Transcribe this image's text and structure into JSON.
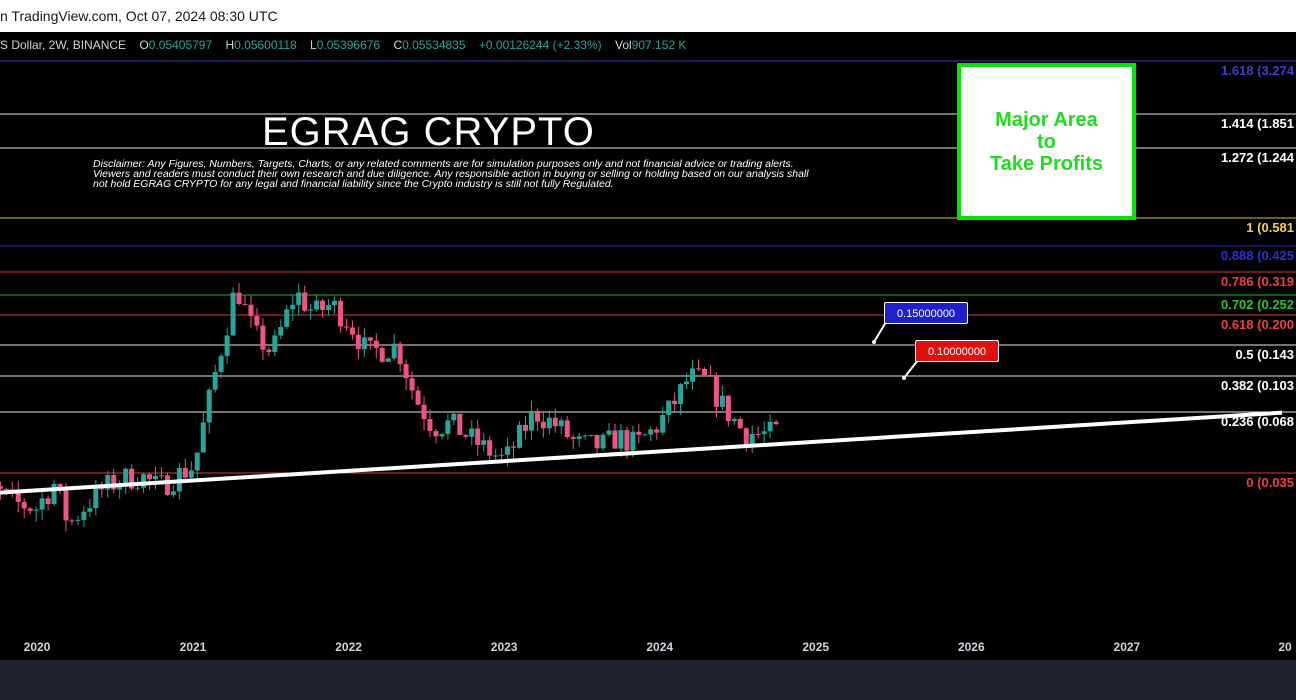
{
  "header": {
    "source_text": "n TradingView.com, Oct 07, 2024 08:30 UTC"
  },
  "legend": {
    "symbol": "S Dollar, 2W, BINANCE",
    "open_label": "O",
    "open": "0.05405797",
    "high_label": "H",
    "high": "0.05600118",
    "low_label": "L",
    "low": "0.05396676",
    "close_label": "C",
    "close": "0.05534835",
    "change": "+0.00126244 (+2.33%)",
    "vol_label": "Vol",
    "vol": "907.152 K"
  },
  "overlay": {
    "brand": "EGRAG CRYPTO",
    "disclaimer": "Disclaimer: Any Figures, Numbers, Targets, Charts, or any related comments are for simulation purposes only and not financial advice or trading alerts. Viewers and readers must conduct their own research and due diligence. Any responsible action in buying or selling or holding based on our analysis shall not hold EGRAG CRYPTO for any legal and financial liability since the Crypto industry is still not fully Regulated.",
    "take_profit_box": "Major Area\nto\nTake Profits"
  },
  "callouts": [
    {
      "text": "0.15000000",
      "color": "#1f1fcc"
    },
    {
      "text": "0.10000000",
      "color": "#e01010"
    }
  ],
  "colors": {
    "up": "#26a69a",
    "down": "#ef5383",
    "background": "#000000",
    "trendline": "#ffffff"
  },
  "chart_data": {
    "type": "candlestick",
    "interval": "2W",
    "xlabel": "",
    "ylabel": "",
    "x_ticks": [
      "2020",
      "2021",
      "2022",
      "2023",
      "2024",
      "2025",
      "2026",
      "2027",
      "20"
    ],
    "fib_levels": [
      {
        "label": "1.618 (3.274",
        "ratio": 1.618,
        "color": "#3f3fcf"
      },
      {
        "label": "1.414 (1.851",
        "ratio": 1.414,
        "color": "#ffffff"
      },
      {
        "label": "1.272 (1.244",
        "ratio": 1.272,
        "color": "#ffffff"
      },
      {
        "label": "1 (0.581",
        "ratio": 1,
        "color": "#f3d14b"
      },
      {
        "label": "0.888 (0.425",
        "ratio": 0.888,
        "color": "#3030d0"
      },
      {
        "label": "0.786 (0.319",
        "ratio": 0.786,
        "color": "#ef4040"
      },
      {
        "label": "0.702 (0.252",
        "ratio": 0.702,
        "color": "#28c828"
      },
      {
        "label": "0.618 (0.200",
        "ratio": 0.618,
        "color": "#ef4040"
      },
      {
        "label": "0.5 (0.143",
        "ratio": 0.5,
        "color": "#ffffff"
      },
      {
        "label": "0.382 (0.103",
        "ratio": 0.382,
        "color": "#ffffff"
      },
      {
        "label": "0.236 (0.068",
        "ratio": 0.236,
        "color": "#ffffff"
      },
      {
        "label": "0 (0.035",
        "ratio": 0,
        "color": "#ef4040"
      }
    ],
    "trendline": {
      "start": {
        "date": "2019-07-01",
        "price": 0.0275
      },
      "end": {
        "date": "2027-12-31",
        "price": 0.0675
      }
    },
    "price_range": [
      0.0165,
      4.0
    ],
    "time_range": [
      "2019-07-01",
      "2027-12-31"
    ],
    "series": [
      {
        "date": "2019-07-15",
        "close": 0.033
      },
      {
        "date": "2019-08-26",
        "close": 0.03
      },
      {
        "date": "2019-10-07",
        "close": 0.028
      },
      {
        "date": "2019-11-18",
        "close": 0.025
      },
      {
        "date": "2019-12-30",
        "close": 0.024
      },
      {
        "date": "2020-02-10",
        "close": 0.031
      },
      {
        "date": "2020-03-16",
        "close": 0.02
      },
      {
        "date": "2020-04-27",
        "close": 0.025
      },
      {
        "date": "2020-06-08",
        "close": 0.03
      },
      {
        "date": "2020-07-20",
        "close": 0.033
      },
      {
        "date": "2020-08-31",
        "close": 0.034
      },
      {
        "date": "2020-10-12",
        "close": 0.03
      },
      {
        "date": "2020-11-23",
        "close": 0.034
      },
      {
        "date": "2021-01-04",
        "close": 0.038
      },
      {
        "date": "2021-02-15",
        "close": 0.09
      },
      {
        "date": "2021-04-12",
        "close": 0.27
      },
      {
        "date": "2021-05-24",
        "close": 0.16
      },
      {
        "date": "2021-07-05",
        "close": 0.13
      },
      {
        "date": "2021-08-30",
        "close": 0.25
      },
      {
        "date": "2021-10-11",
        "close": 0.2
      },
      {
        "date": "2021-11-22",
        "close": 0.22
      },
      {
        "date": "2022-01-03",
        "close": 0.18
      },
      {
        "date": "2022-02-14",
        "close": 0.13
      },
      {
        "date": "2022-04-25",
        "close": 0.14
      },
      {
        "date": "2022-06-06",
        "close": 0.08
      },
      {
        "date": "2022-07-18",
        "close": 0.058
      },
      {
        "date": "2022-08-29",
        "close": 0.06
      },
      {
        "date": "2022-10-10",
        "close": 0.052
      },
      {
        "date": "2022-11-21",
        "close": 0.045
      },
      {
        "date": "2023-01-02",
        "close": 0.04
      },
      {
        "date": "2023-03-13",
        "close": 0.068
      },
      {
        "date": "2023-05-08",
        "close": 0.058
      },
      {
        "date": "2023-06-19",
        "close": 0.048
      },
      {
        "date": "2023-08-14",
        "close": 0.047
      },
      {
        "date": "2023-09-25",
        "close": 0.052
      },
      {
        "date": "2023-11-06",
        "close": 0.048
      },
      {
        "date": "2023-12-18",
        "close": 0.056
      },
      {
        "date": "2024-01-29",
        "close": 0.072
      },
      {
        "date": "2024-03-11",
        "close": 0.1
      },
      {
        "date": "2024-04-22",
        "close": 0.095
      },
      {
        "date": "2024-06-03",
        "close": 0.07
      },
      {
        "date": "2024-07-15",
        "close": 0.055
      },
      {
        "date": "2024-08-26",
        "close": 0.053
      },
      {
        "date": "2024-10-07",
        "close": 0.0553
      }
    ]
  }
}
